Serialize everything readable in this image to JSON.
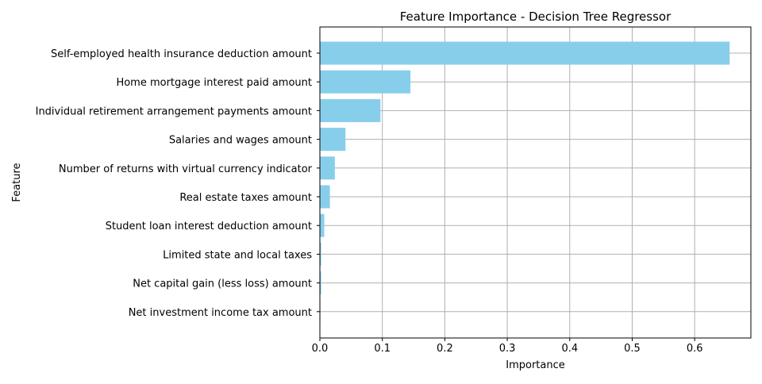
{
  "chart_data": {
    "type": "bar",
    "orientation": "horizontal",
    "title": "Feature Importance - Decision Tree Regressor",
    "xlabel": "Importance",
    "ylabel": "Feature",
    "categories": [
      "Self-employed health insurance deduction amount",
      "Home mortgage interest paid amount",
      "Individual retirement arrangement payments amount",
      "Salaries and wages amount",
      "Number of returns with virtual currency indicator",
      "Real estate taxes amount",
      "Student loan interest deduction amount",
      "Limited state and local taxes",
      "Net capital gain (less loss) amount",
      "Net investment income tax amount"
    ],
    "values": [
      0.656,
      0.145,
      0.097,
      0.041,
      0.024,
      0.016,
      0.007,
      0.002,
      0.002,
      0.0005
    ],
    "xlim": [
      0,
      0.69
    ],
    "xticks": [
      0,
      0.1,
      0.2,
      0.3,
      0.4,
      0.5,
      0.6
    ],
    "xtick_labels": [
      "0.0",
      "0.1",
      "0.2",
      "0.3",
      "0.4",
      "0.5",
      "0.6"
    ],
    "grid": true,
    "legend": "none",
    "bar_color": "#87ceeb",
    "grid_color": "#b0b0b0"
  }
}
